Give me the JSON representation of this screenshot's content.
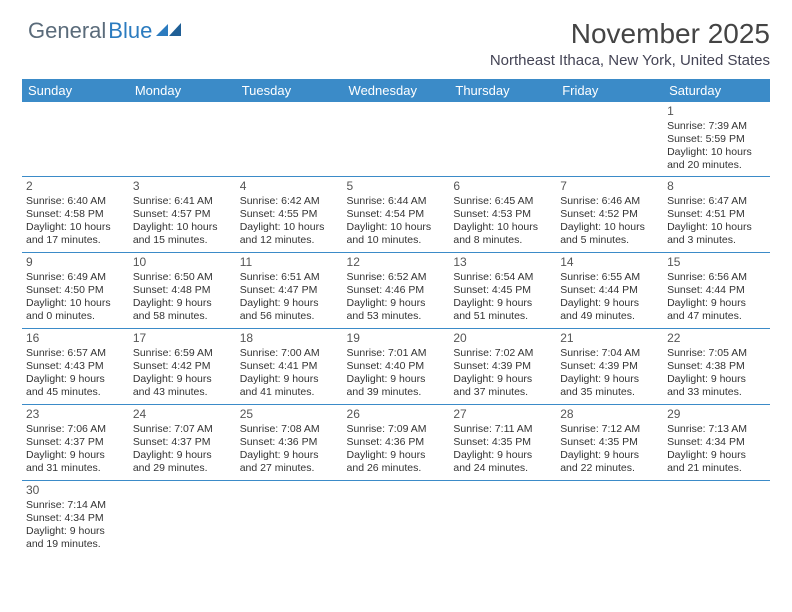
{
  "brand": {
    "part1": "General",
    "part2": "Blue"
  },
  "title": "November 2025",
  "location": "Northeast Ithaca, New York, United States",
  "weekdays": [
    "Sunday",
    "Monday",
    "Tuesday",
    "Wednesday",
    "Thursday",
    "Friday",
    "Saturday"
  ],
  "colors": {
    "header_bg": "#3b8bc8",
    "header_text": "#ffffff",
    "rule": "#3b8bc8",
    "logo_gray": "#5a6b7a",
    "logo_blue": "#2b7bbf"
  },
  "weeks": [
    [
      null,
      null,
      null,
      null,
      null,
      null,
      {
        "n": "1",
        "sr": "Sunrise: 7:39 AM",
        "ss": "Sunset: 5:59 PM",
        "dl": "Daylight: 10 hours and 20 minutes."
      }
    ],
    [
      {
        "n": "2",
        "sr": "Sunrise: 6:40 AM",
        "ss": "Sunset: 4:58 PM",
        "dl": "Daylight: 10 hours and 17 minutes."
      },
      {
        "n": "3",
        "sr": "Sunrise: 6:41 AM",
        "ss": "Sunset: 4:57 PM",
        "dl": "Daylight: 10 hours and 15 minutes."
      },
      {
        "n": "4",
        "sr": "Sunrise: 6:42 AM",
        "ss": "Sunset: 4:55 PM",
        "dl": "Daylight: 10 hours and 12 minutes."
      },
      {
        "n": "5",
        "sr": "Sunrise: 6:44 AM",
        "ss": "Sunset: 4:54 PM",
        "dl": "Daylight: 10 hours and 10 minutes."
      },
      {
        "n": "6",
        "sr": "Sunrise: 6:45 AM",
        "ss": "Sunset: 4:53 PM",
        "dl": "Daylight: 10 hours and 8 minutes."
      },
      {
        "n": "7",
        "sr": "Sunrise: 6:46 AM",
        "ss": "Sunset: 4:52 PM",
        "dl": "Daylight: 10 hours and 5 minutes."
      },
      {
        "n": "8",
        "sr": "Sunrise: 6:47 AM",
        "ss": "Sunset: 4:51 PM",
        "dl": "Daylight: 10 hours and 3 minutes."
      }
    ],
    [
      {
        "n": "9",
        "sr": "Sunrise: 6:49 AM",
        "ss": "Sunset: 4:50 PM",
        "dl": "Daylight: 10 hours and 0 minutes."
      },
      {
        "n": "10",
        "sr": "Sunrise: 6:50 AM",
        "ss": "Sunset: 4:48 PM",
        "dl": "Daylight: 9 hours and 58 minutes."
      },
      {
        "n": "11",
        "sr": "Sunrise: 6:51 AM",
        "ss": "Sunset: 4:47 PM",
        "dl": "Daylight: 9 hours and 56 minutes."
      },
      {
        "n": "12",
        "sr": "Sunrise: 6:52 AM",
        "ss": "Sunset: 4:46 PM",
        "dl": "Daylight: 9 hours and 53 minutes."
      },
      {
        "n": "13",
        "sr": "Sunrise: 6:54 AM",
        "ss": "Sunset: 4:45 PM",
        "dl": "Daylight: 9 hours and 51 minutes."
      },
      {
        "n": "14",
        "sr": "Sunrise: 6:55 AM",
        "ss": "Sunset: 4:44 PM",
        "dl": "Daylight: 9 hours and 49 minutes."
      },
      {
        "n": "15",
        "sr": "Sunrise: 6:56 AM",
        "ss": "Sunset: 4:44 PM",
        "dl": "Daylight: 9 hours and 47 minutes."
      }
    ],
    [
      {
        "n": "16",
        "sr": "Sunrise: 6:57 AM",
        "ss": "Sunset: 4:43 PM",
        "dl": "Daylight: 9 hours and 45 minutes."
      },
      {
        "n": "17",
        "sr": "Sunrise: 6:59 AM",
        "ss": "Sunset: 4:42 PM",
        "dl": "Daylight: 9 hours and 43 minutes."
      },
      {
        "n": "18",
        "sr": "Sunrise: 7:00 AM",
        "ss": "Sunset: 4:41 PM",
        "dl": "Daylight: 9 hours and 41 minutes."
      },
      {
        "n": "19",
        "sr": "Sunrise: 7:01 AM",
        "ss": "Sunset: 4:40 PM",
        "dl": "Daylight: 9 hours and 39 minutes."
      },
      {
        "n": "20",
        "sr": "Sunrise: 7:02 AM",
        "ss": "Sunset: 4:39 PM",
        "dl": "Daylight: 9 hours and 37 minutes."
      },
      {
        "n": "21",
        "sr": "Sunrise: 7:04 AM",
        "ss": "Sunset: 4:39 PM",
        "dl": "Daylight: 9 hours and 35 minutes."
      },
      {
        "n": "22",
        "sr": "Sunrise: 7:05 AM",
        "ss": "Sunset: 4:38 PM",
        "dl": "Daylight: 9 hours and 33 minutes."
      }
    ],
    [
      {
        "n": "23",
        "sr": "Sunrise: 7:06 AM",
        "ss": "Sunset: 4:37 PM",
        "dl": "Daylight: 9 hours and 31 minutes."
      },
      {
        "n": "24",
        "sr": "Sunrise: 7:07 AM",
        "ss": "Sunset: 4:37 PM",
        "dl": "Daylight: 9 hours and 29 minutes."
      },
      {
        "n": "25",
        "sr": "Sunrise: 7:08 AM",
        "ss": "Sunset: 4:36 PM",
        "dl": "Daylight: 9 hours and 27 minutes."
      },
      {
        "n": "26",
        "sr": "Sunrise: 7:09 AM",
        "ss": "Sunset: 4:36 PM",
        "dl": "Daylight: 9 hours and 26 minutes."
      },
      {
        "n": "27",
        "sr": "Sunrise: 7:11 AM",
        "ss": "Sunset: 4:35 PM",
        "dl": "Daylight: 9 hours and 24 minutes."
      },
      {
        "n": "28",
        "sr": "Sunrise: 7:12 AM",
        "ss": "Sunset: 4:35 PM",
        "dl": "Daylight: 9 hours and 22 minutes."
      },
      {
        "n": "29",
        "sr": "Sunrise: 7:13 AM",
        "ss": "Sunset: 4:34 PM",
        "dl": "Daylight: 9 hours and 21 minutes."
      }
    ],
    [
      {
        "n": "30",
        "sr": "Sunrise: 7:14 AM",
        "ss": "Sunset: 4:34 PM",
        "dl": "Daylight: 9 hours and 19 minutes."
      },
      null,
      null,
      null,
      null,
      null,
      null
    ]
  ]
}
